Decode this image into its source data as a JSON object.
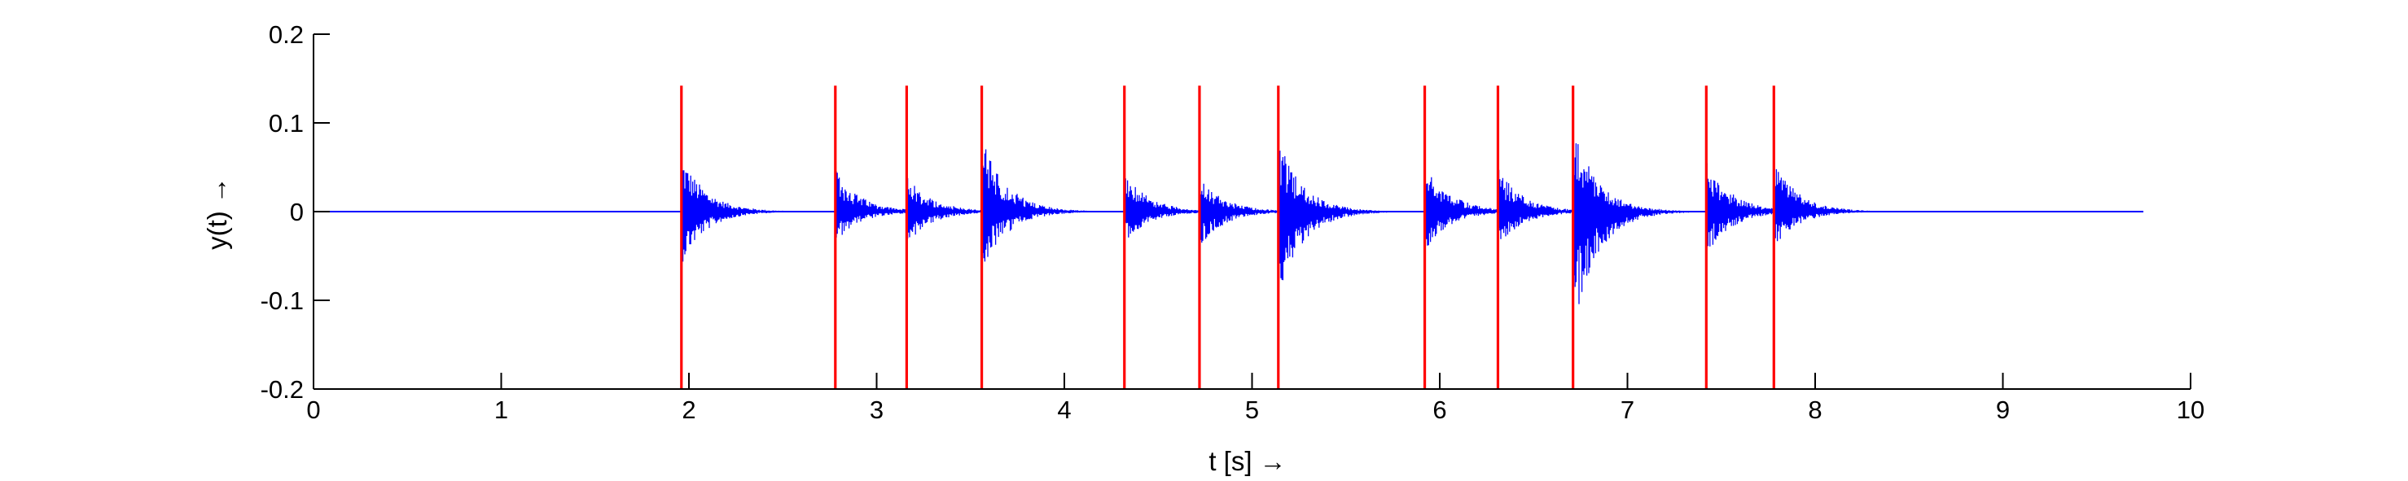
{
  "chart_data": {
    "type": "line",
    "title": "",
    "xlabel": "t [s] →",
    "ylabel": "y(t)  →",
    "xlim": [
      0,
      10
    ],
    "ylim": [
      -0.2,
      0.2
    ],
    "x_ticks": [
      "0",
      "1",
      "2",
      "3",
      "4",
      "5",
      "6",
      "7",
      "8",
      "9",
      "10"
    ],
    "y_ticks": [
      "-0.2",
      "-0.1",
      "0",
      "0.1",
      "0.2"
    ],
    "grid": false,
    "legend": "none",
    "colors": {
      "signal": "#0000ff",
      "onset": "#ff0000",
      "axis": "#000000"
    },
    "signal": {
      "x_range": [
        0,
        9.75
      ],
      "baseline": 0,
      "bursts": [
        {
          "t": 1.96,
          "max": 0.065,
          "min": -0.06
        },
        {
          "t": 2.78,
          "max": 0.048,
          "min": -0.035
        },
        {
          "t": 3.16,
          "max": 0.042,
          "min": -0.038
        },
        {
          "t": 3.56,
          "max": 0.085,
          "min": -0.07
        },
        {
          "t": 4.32,
          "max": 0.045,
          "min": -0.035
        },
        {
          "t": 4.72,
          "max": 0.04,
          "min": -0.04
        },
        {
          "t": 5.14,
          "max": 0.082,
          "min": -0.1
        },
        {
          "t": 5.92,
          "max": 0.06,
          "min": -0.045
        },
        {
          "t": 6.31,
          "max": 0.05,
          "min": -0.04
        },
        {
          "t": 6.71,
          "max": 0.1,
          "min": -0.14
        },
        {
          "t": 7.42,
          "max": 0.06,
          "min": -0.05
        },
        {
          "t": 7.78,
          "max": 0.058,
          "min": -0.04
        }
      ]
    },
    "onsets": [
      1.96,
      2.78,
      3.16,
      3.56,
      4.32,
      4.72,
      5.14,
      5.92,
      6.31,
      6.71,
      7.42,
      7.78
    ],
    "onset_ylim": [
      -0.2,
      0.142
    ]
  }
}
